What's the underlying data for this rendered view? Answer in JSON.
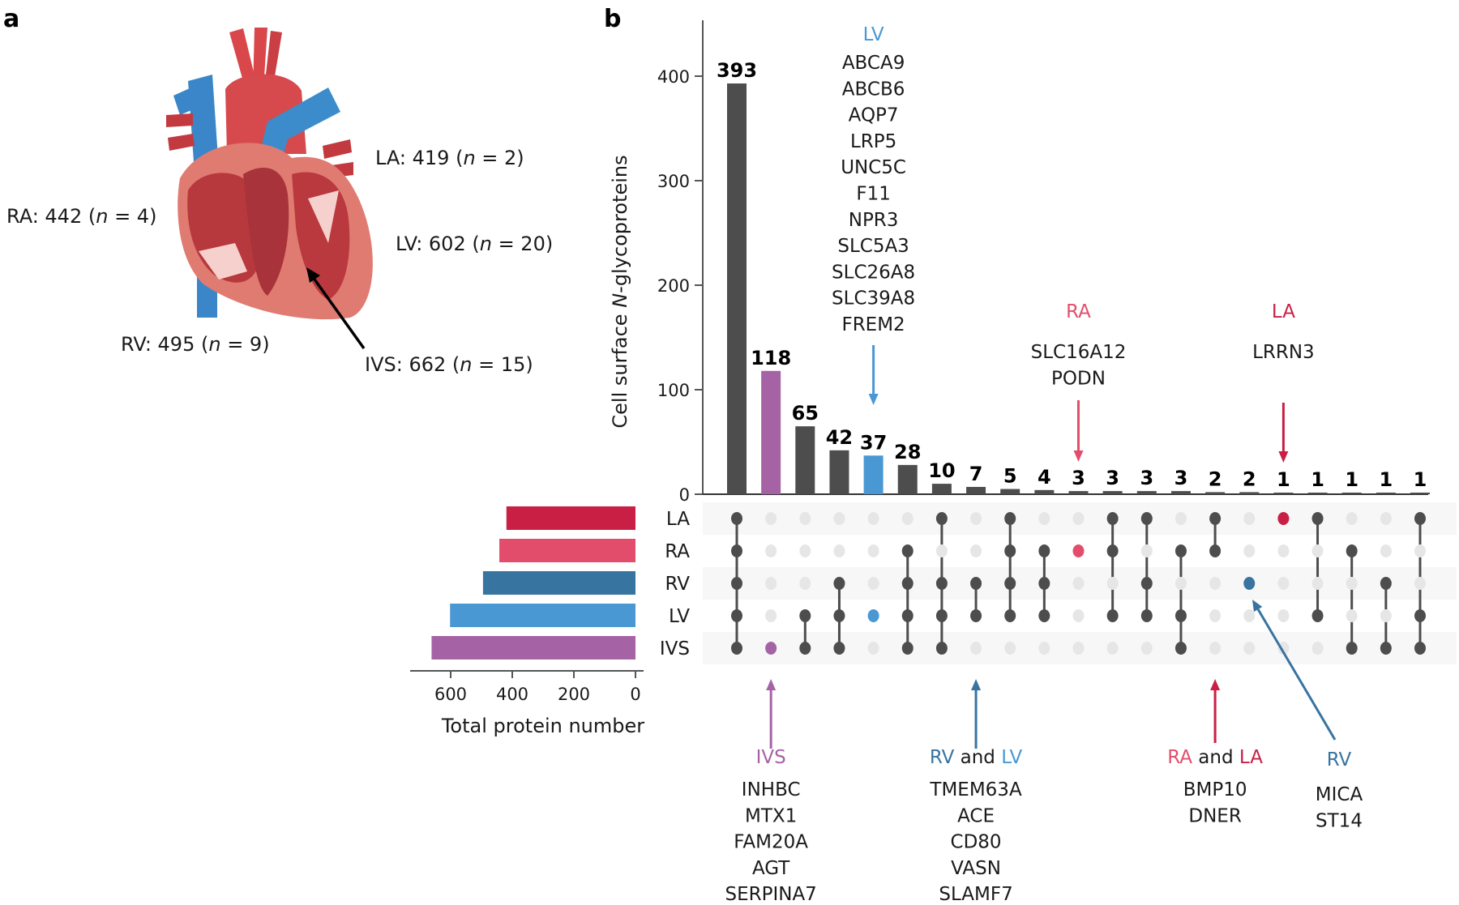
{
  "panels": {
    "a": "a",
    "b": "b"
  },
  "colors": {
    "LA": "#c91f45",
    "RA": "#e34d6c",
    "RV": "#3874a0",
    "LV": "#4a98d3",
    "IVS": "#a563a6",
    "bar_default": "#4d4d4d",
    "dot_inactive": "#e6e6e6",
    "row_shade": "#f7f7f7",
    "arrow_black": "#000000"
  },
  "heart_labels": [
    {
      "region": "LA",
      "prefix": "LA: 419 (",
      "n_label": "n",
      "suffix": " = 2)"
    },
    {
      "region": "RA",
      "prefix": "RA: 442 (",
      "n_label": "n",
      "suffix": " = 4)"
    },
    {
      "region": "LV",
      "prefix": "LV: 602 (",
      "n_label": "n",
      "suffix": " = 20)"
    },
    {
      "region": "RV",
      "prefix": "RV: 495 (",
      "n_label": "n",
      "suffix": " = 9)"
    },
    {
      "region": "IVS",
      "prefix": "IVS: 662 (",
      "n_label": "n",
      "suffix": " = 15)"
    }
  ],
  "chart_data": [
    {
      "type": "bar",
      "orientation": "horizontal",
      "title": "",
      "xlabel": "Total protein number",
      "ylabel": "",
      "categories": [
        "LA",
        "RA",
        "RV",
        "LV",
        "IVS"
      ],
      "values": [
        419,
        442,
        495,
        602,
        662
      ],
      "xlim": [
        700,
        0
      ],
      "xticks": [
        600,
        400,
        200,
        0
      ],
      "grid": false
    },
    {
      "type": "bar",
      "subtype": "upset",
      "title": "",
      "xlabel": "",
      "ylabel_prefix": "Cell surface ",
      "ylabel_italic": "N",
      "ylabel_suffix": "-glycoproteins",
      "ylim": [
        0,
        450
      ],
      "yticks": [
        0,
        100,
        200,
        300,
        400
      ],
      "grid": false,
      "sets": [
        "LA",
        "RA",
        "RV",
        "LV",
        "IVS"
      ],
      "values": [
        393,
        118,
        65,
        42,
        37,
        28,
        10,
        7,
        5,
        4,
        3,
        3,
        3,
        3,
        2,
        2,
        1,
        1,
        1,
        1,
        1
      ],
      "bar_highlight": [
        null,
        "IVS",
        null,
        null,
        "LV",
        null,
        null,
        null,
        null,
        null,
        null,
        null,
        null,
        null,
        null,
        null,
        null,
        null,
        null,
        null,
        null
      ],
      "intersections": [
        [
          "LA",
          "RA",
          "RV",
          "LV",
          "IVS"
        ],
        [
          "IVS"
        ],
        [
          "LV",
          "IVS"
        ],
        [
          "RV",
          "LV",
          "IVS"
        ],
        [
          "LV"
        ],
        [
          "RA",
          "RV",
          "LV",
          "IVS"
        ],
        [
          "LA",
          "RV",
          "LV",
          "IVS"
        ],
        [
          "RV",
          "LV"
        ],
        [
          "LA",
          "RA",
          "RV",
          "LV"
        ],
        [
          "RA",
          "RV",
          "LV"
        ],
        [
          "RA"
        ],
        [
          "LA",
          "RA",
          "LV"
        ],
        [
          "LA",
          "RV",
          "LV"
        ],
        [
          "RA",
          "LV",
          "IVS"
        ],
        [
          "LA",
          "RA"
        ],
        [
          "RV"
        ],
        [
          "LA"
        ],
        [
          "LA",
          "LV"
        ],
        [
          "RA",
          "IVS"
        ],
        [
          "RV",
          "IVS"
        ],
        [
          "LA",
          "LV",
          "IVS"
        ]
      ],
      "dot_highlight": [
        null,
        "IVS",
        null,
        null,
        "LV",
        null,
        null,
        null,
        null,
        null,
        "RA",
        null,
        null,
        null,
        null,
        "RV",
        "LA",
        null,
        null,
        null,
        null
      ],
      "annotations_top": [
        {
          "column": 4,
          "title": "LV",
          "color_key": "LV",
          "genes": [
            "ABCA9",
            "ABCB6",
            "AQP7",
            "LRP5",
            "UNC5C",
            "F11",
            "NPR3",
            "SLC5A3",
            "SLC26A8",
            "SLC39A8",
            "FREM2"
          ]
        },
        {
          "column": 10,
          "title": "RA",
          "color_key": "RA",
          "genes": [
            "SLC16A12",
            "PODN"
          ]
        },
        {
          "column": 16,
          "title": "LA",
          "color_key": "LA",
          "genes": [
            "LRRN3"
          ]
        }
      ],
      "annotations_bottom": [
        {
          "column": 1,
          "title_parts": [
            {
              "text": "IVS",
              "color_key": "IVS"
            }
          ],
          "genes": [
            "INHBC",
            "MTX1",
            "FAM20A",
            "AGT",
            "SERPINA7"
          ]
        },
        {
          "column": 7,
          "title_parts": [
            {
              "text": "RV",
              "color_key": "RV"
            },
            {
              "text": " and ",
              "color_key": null
            },
            {
              "text": "LV",
              "color_key": "LV"
            }
          ],
          "genes": [
            "TMEM63A",
            "ACE",
            "CD80",
            "VASN",
            "SLAMF7"
          ]
        },
        {
          "column": 14,
          "title_parts": [
            {
              "text": "RA",
              "color_key": "RA"
            },
            {
              "text": " and ",
              "color_key": null
            },
            {
              "text": "LA",
              "color_key": "LA"
            }
          ],
          "genes": [
            "BMP10",
            "DNER"
          ]
        },
        {
          "column": 15,
          "title_parts": [
            {
              "text": "RV",
              "color_key": "RV"
            }
          ],
          "genes": [
            "MICA",
            "ST14"
          ]
        }
      ]
    }
  ]
}
